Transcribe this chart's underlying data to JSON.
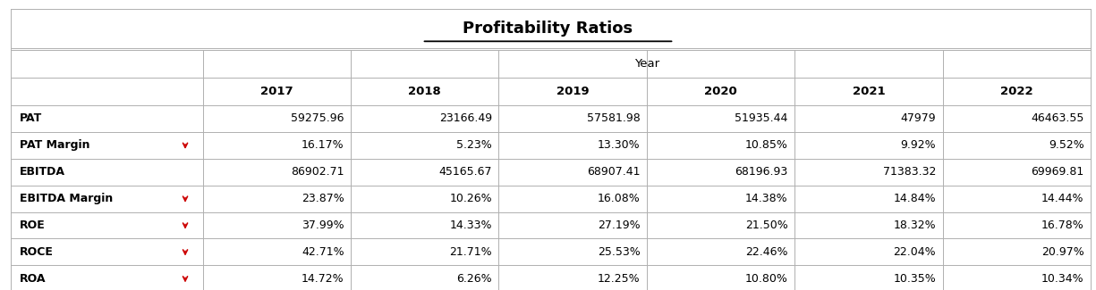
{
  "title": "Profitability Ratios",
  "col_header_group": "Year",
  "years": [
    "2017",
    "2018",
    "2019",
    "2020",
    "2021",
    "2022"
  ],
  "rows": [
    {
      "label": "PAT",
      "values": [
        "59275.96",
        "23166.49",
        "57581.98",
        "51935.44",
        "47979",
        "46463.55"
      ],
      "arrow": false
    },
    {
      "label": "PAT Margin",
      "values": [
        "16.17%",
        "5.23%",
        "13.30%",
        "10.85%",
        "9.92%",
        "9.52%"
      ],
      "arrow": true
    },
    {
      "label": "EBITDA",
      "values": [
        "86902.71",
        "45165.67",
        "68907.41",
        "68196.93",
        "71383.32",
        "69969.81"
      ],
      "arrow": false
    },
    {
      "label": "EBITDA Margin",
      "values": [
        "23.87%",
        "10.26%",
        "16.08%",
        "14.38%",
        "14.84%",
        "14.44%"
      ],
      "arrow": true
    },
    {
      "label": "ROE",
      "values": [
        "37.99%",
        "14.33%",
        "27.19%",
        "21.50%",
        "18.32%",
        "16.78%"
      ],
      "arrow": true
    },
    {
      "label": "ROCE",
      "values": [
        "42.71%",
        "21.71%",
        "25.53%",
        "22.46%",
        "22.04%",
        "20.97%"
      ],
      "arrow": true
    },
    {
      "label": "ROA",
      "values": [
        "14.72%",
        "6.26%",
        "12.25%",
        "10.80%",
        "10.35%",
        "10.34%"
      ],
      "arrow": true
    }
  ],
  "bg_color": "#ffffff",
  "grid_color": "#b0b0b0",
  "text_color": "#000000",
  "title_fontsize": 13,
  "header_fontsize": 9.5,
  "cell_fontsize": 9,
  "arrow_color": "#cc0000"
}
